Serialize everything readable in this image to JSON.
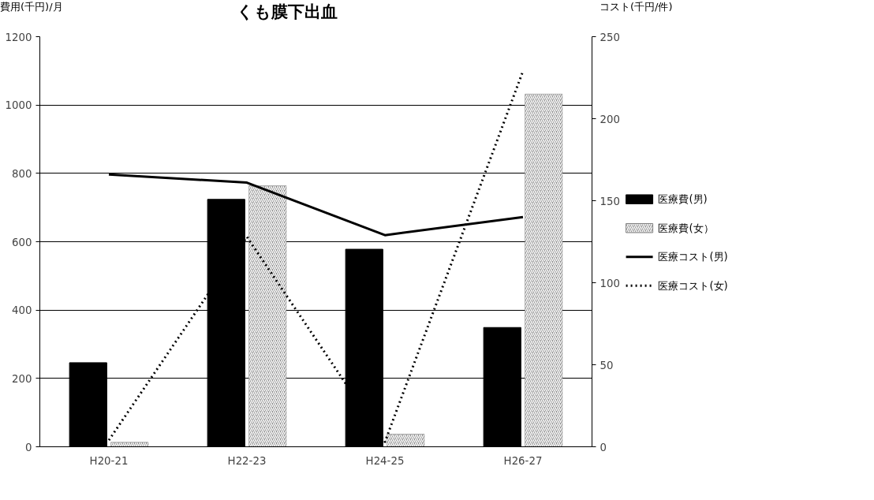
{
  "chart_data": {
    "type": "bar",
    "title": "くも膜下出血",
    "ylabel": "費用(千円)/月",
    "y2label": "コスト(千円/件)",
    "categories": [
      "H20-21",
      "H22-23",
      "H24-25",
      "H26-27"
    ],
    "series": [
      {
        "name": "医療費(男)",
        "color": "#000000",
        "values": [
          246,
          724,
          578,
          349
        ]
      },
      {
        "name": "医療費(女）",
        "color": "#808080",
        "values": [
          13,
          764,
          37,
          1032
        ]
      },
      {
        "name": "医療コスト(男)",
        "type": "line",
        "axis": "y2",
        "color": "#000000",
        "line_style": "solid",
        "values": [
          166,
          161,
          129,
          140
        ]
      },
      {
        "name": "医療コスト(女)",
        "type": "line",
        "axis": "y2",
        "color": "#000000",
        "line_style": "dotted",
        "values": [
          4,
          128,
          3,
          229
        ]
      }
    ],
    "ylim": [
      0,
      1200
    ],
    "yticks": [
      0,
      200,
      400,
      600,
      800,
      1000,
      1200
    ],
    "y2lim": [
      0,
      250
    ],
    "y2ticks": [
      0,
      50,
      100,
      150,
      200,
      250
    ],
    "grid": "y",
    "legend": "right"
  }
}
